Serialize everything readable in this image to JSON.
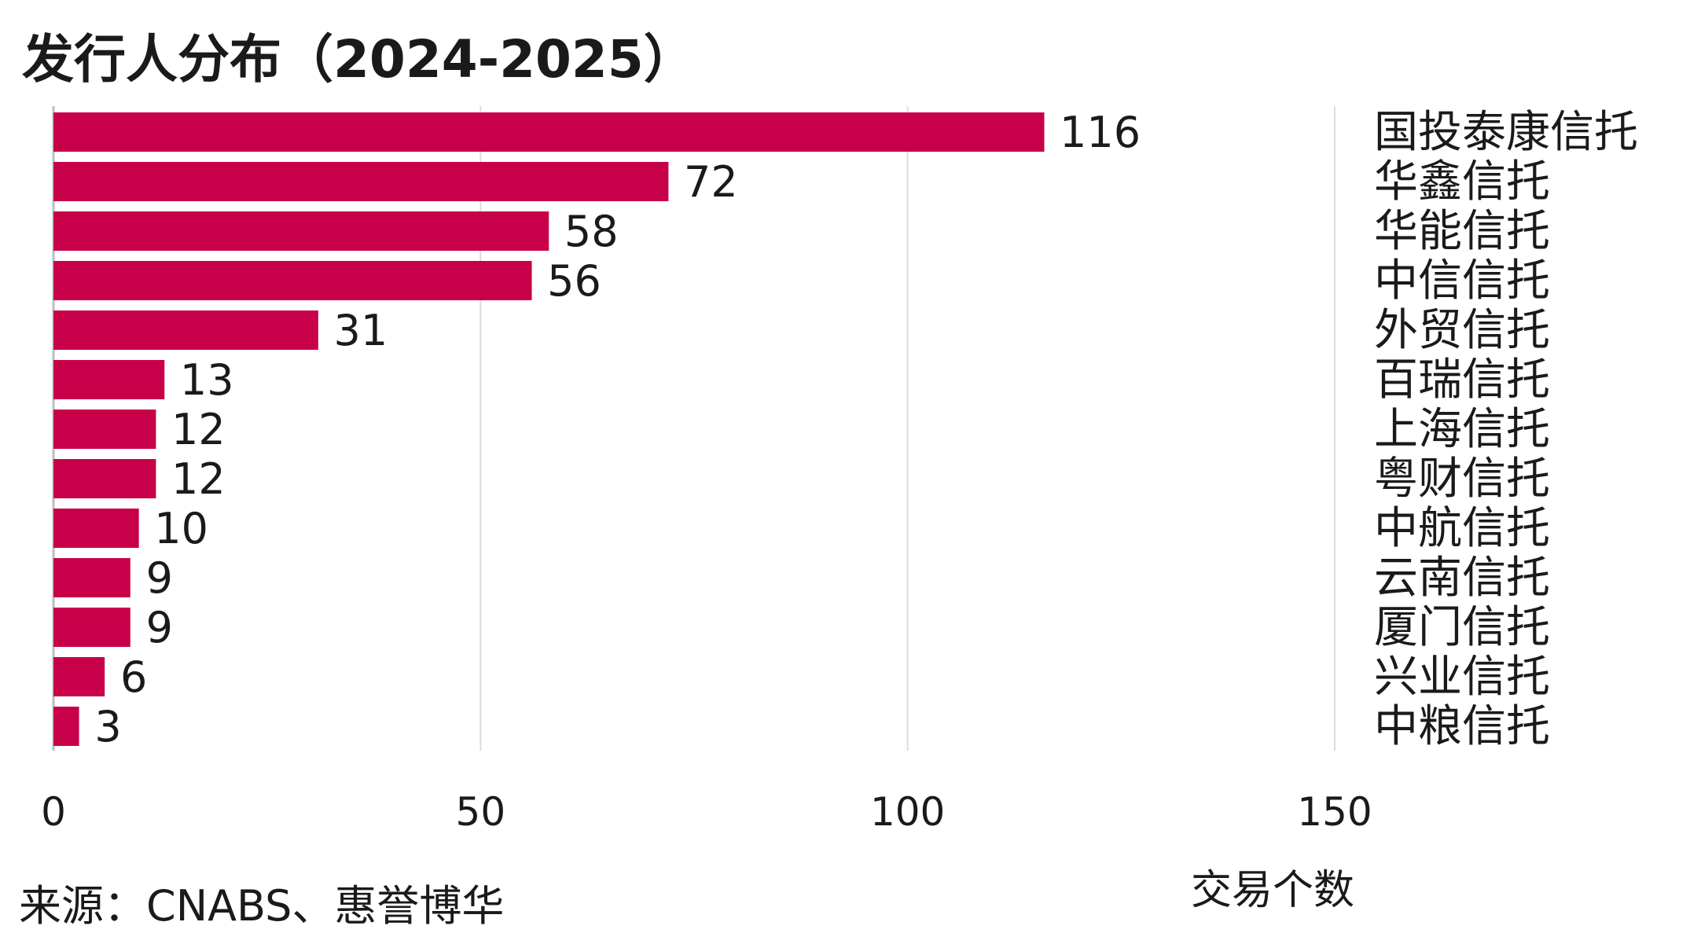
{
  "chart_data": {
    "type": "bar",
    "orientation": "horizontal",
    "title": "发行人分布（2024-2025）",
    "xlabel": "交易个数",
    "ylabel": "",
    "xlim": [
      0,
      150
    ],
    "xticks": [
      0,
      50,
      100,
      150
    ],
    "grid": true,
    "categories": [
      "国投泰康信托",
      "华鑫信托",
      "华能信托",
      "中信信托",
      "外贸信托",
      "百瑞信托",
      "上海信托",
      "粤财信托",
      "中航信托",
      "云南信托",
      "厦门信托",
      "兴业信托",
      "中粮信托"
    ],
    "values": [
      116,
      72,
      58,
      56,
      31,
      13,
      12,
      12,
      10,
      9,
      9,
      6,
      3
    ],
    "bar_color": "#c8004a",
    "source": "来源：CNABS、惠誉博华"
  }
}
